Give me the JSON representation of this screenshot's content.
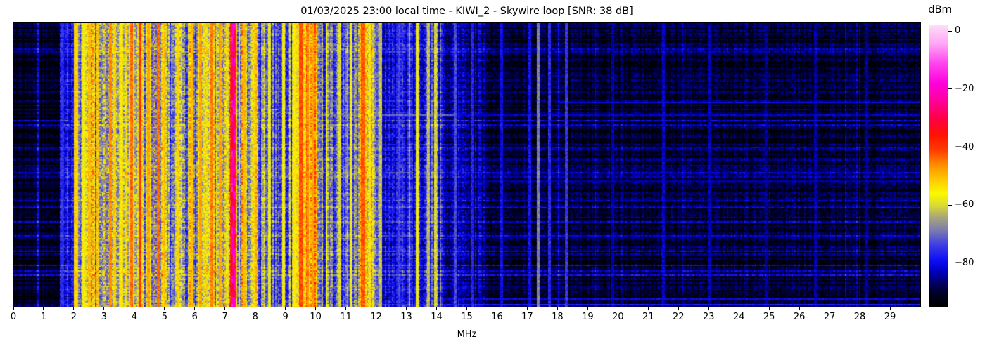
{
  "chart_data": {
    "type": "heatmap",
    "heatmap_kind": "radio-spectrum-waterfall",
    "title": "01/03/2025 23:00 local time - KIWI_2 - Skywire loop [SNR: 38 dB]",
    "xlabel": "MHz",
    "x_range_mhz": [
      0,
      30
    ],
    "x_ticks": [
      0,
      1,
      2,
      3,
      4,
      5,
      6,
      7,
      8,
      9,
      10,
      11,
      12,
      13,
      14,
      15,
      16,
      17,
      18,
      19,
      20,
      21,
      22,
      23,
      24,
      25,
      26,
      27,
      28,
      29
    ],
    "y_ticks": [],
    "value_range_dbm": [
      -95,
      2
    ],
    "colorbar": {
      "label": "dBm",
      "ticks": [
        {
          "v": 0,
          "label": "0"
        },
        {
          "v": -20,
          "label": "−20"
        },
        {
          "v": -40,
          "label": "−40"
        },
        {
          "v": -60,
          "label": "−60"
        },
        {
          "v": -80,
          "label": "−80"
        }
      ]
    },
    "colormap_stops": [
      [
        -95,
        "#000000"
      ],
      [
        -91,
        "#00001e"
      ],
      [
        -87,
        "#000064"
      ],
      [
        -83,
        "#0000be"
      ],
      [
        -79,
        "#0f0ff5"
      ],
      [
        -74,
        "#3c3ce6"
      ],
      [
        -69,
        "#7878b4"
      ],
      [
        -64,
        "#aaaa78"
      ],
      [
        -60,
        "#dcdc32"
      ],
      [
        -56,
        "#fafa00"
      ],
      [
        -51,
        "#ffc800"
      ],
      [
        -46,
        "#ff8c00"
      ],
      [
        -41,
        "#ff3c00"
      ],
      [
        -36,
        "#ff1400"
      ],
      [
        -30,
        "#ff0046"
      ],
      [
        -24,
        "#ff009b"
      ],
      [
        -18,
        "#ff00dc"
      ],
      [
        -11,
        "#ff46f0"
      ],
      [
        -4,
        "#ffaaf5"
      ],
      [
        2,
        "#ffdcfa"
      ]
    ],
    "bands_key": [
      "from_mhz",
      "to_mhz",
      "base_dbm",
      "spread_db",
      "p_active_col",
      "active_up_db",
      "row_texture_factor",
      "pixel_noise_db"
    ],
    "bands": [
      [
        0.0,
        1.52,
        -91,
        2.5,
        0.04,
        8,
        1.6,
        3.0
      ],
      [
        1.52,
        2.02,
        -81,
        5.0,
        0.1,
        6,
        1.0,
        5.0
      ],
      [
        2.02,
        2.55,
        -70,
        9.0,
        0.25,
        9,
        0.8,
        6.0
      ],
      [
        2.55,
        5.15,
        -63,
        10.0,
        0.35,
        9,
        0.7,
        7.0
      ],
      [
        5.15,
        6.1,
        -67,
        10.0,
        0.25,
        9,
        0.7,
        7.0
      ],
      [
        6.1,
        7.18,
        -60,
        10.0,
        0.35,
        9,
        0.7,
        7.0
      ],
      [
        7.18,
        7.38,
        -44,
        6.0,
        0.5,
        6,
        0.5,
        6.0
      ],
      [
        7.38,
        8.1,
        -62,
        10.0,
        0.3,
        8,
        0.7,
        7.0
      ],
      [
        8.1,
        9.35,
        -71,
        9.0,
        0.18,
        10,
        0.8,
        6.0
      ],
      [
        9.35,
        10.05,
        -58,
        9.0,
        0.35,
        8,
        0.7,
        7.0
      ],
      [
        10.05,
        11.45,
        -71,
        9.0,
        0.15,
        10,
        0.8,
        6.0
      ],
      [
        11.45,
        11.68,
        -50,
        7.0,
        0.4,
        6,
        0.6,
        6.0
      ],
      [
        11.68,
        12.05,
        -64,
        9.0,
        0.3,
        8,
        0.7,
        6.0
      ],
      [
        12.05,
        13.25,
        -79,
        6.0,
        0.1,
        9,
        1.0,
        5.0
      ],
      [
        13.25,
        14.15,
        -75,
        8.0,
        0.15,
        10,
        1.0,
        6.0
      ],
      [
        14.15,
        15.6,
        -85,
        4.0,
        0.06,
        8,
        1.2,
        4.5
      ],
      [
        15.6,
        30.0,
        -90,
        2.5,
        0.03,
        6,
        1.5,
        3.5
      ]
    ],
    "carriers_key": [
      "freq_mhz",
      "halfwidth_mhz",
      "level_dbm"
    ],
    "carriers": [
      [
        1.62,
        0.025,
        -76
      ],
      [
        2.07,
        0.025,
        -52
      ],
      [
        2.32,
        0.02,
        -56
      ],
      [
        2.5,
        0.02,
        -50
      ],
      [
        2.8,
        0.02,
        -52
      ],
      [
        3.2,
        0.025,
        -46
      ],
      [
        3.35,
        0.02,
        -52
      ],
      [
        3.6,
        0.02,
        -55
      ],
      [
        3.9,
        0.025,
        -44
      ],
      [
        4.19,
        0.03,
        -40
      ],
      [
        4.45,
        0.02,
        -48
      ],
      [
        4.78,
        0.025,
        -44
      ],
      [
        5.0,
        0.02,
        -50
      ],
      [
        5.45,
        0.02,
        -52
      ],
      [
        5.9,
        0.02,
        -50
      ],
      [
        6.2,
        0.02,
        -48
      ],
      [
        6.55,
        0.025,
        -45
      ],
      [
        6.85,
        0.02,
        -48
      ],
      [
        7.27,
        0.06,
        -30
      ],
      [
        7.62,
        0.02,
        -50
      ],
      [
        8.0,
        0.02,
        -52
      ],
      [
        8.45,
        0.02,
        -58
      ],
      [
        8.95,
        0.02,
        -56
      ],
      [
        9.3,
        0.02,
        -55
      ],
      [
        9.52,
        0.035,
        -42
      ],
      [
        9.7,
        0.025,
        -46
      ],
      [
        9.92,
        0.025,
        -48
      ],
      [
        10.35,
        0.02,
        -58
      ],
      [
        10.8,
        0.02,
        -60
      ],
      [
        11.18,
        0.02,
        -58
      ],
      [
        11.56,
        0.04,
        -43
      ],
      [
        11.82,
        0.025,
        -54
      ],
      [
        12.12,
        0.02,
        -62
      ],
      [
        12.75,
        0.02,
        -74
      ],
      [
        13.37,
        0.025,
        -57
      ],
      [
        13.72,
        0.02,
        -62
      ],
      [
        13.97,
        0.025,
        -60
      ],
      [
        14.6,
        0.02,
        -73
      ],
      [
        15.15,
        0.02,
        -77
      ],
      [
        16.12,
        0.02,
        -80
      ],
      [
        17.05,
        0.02,
        -79
      ],
      [
        17.35,
        0.025,
        -68
      ],
      [
        17.72,
        0.02,
        -76
      ],
      [
        18.28,
        0.025,
        -75
      ],
      [
        19.8,
        0.02,
        -84
      ],
      [
        21.5,
        0.02,
        -82
      ],
      [
        23.02,
        0.02,
        -83
      ],
      [
        24.9,
        0.02,
        -85
      ],
      [
        26.5,
        0.02,
        -84
      ],
      [
        28.2,
        0.02,
        -85
      ]
    ],
    "time_lines_key": [
      "time_fraction",
      "from_mhz",
      "to_mhz",
      "level_dbm"
    ],
    "time_lines": [
      [
        0.277,
        18.0,
        30.0,
        -80
      ],
      [
        0.325,
        9.7,
        14.6,
        -70
      ],
      [
        0.325,
        14.6,
        30.0,
        -82
      ],
      [
        0.555,
        10.0,
        30.0,
        -84
      ],
      [
        0.975,
        12.5,
        30.0,
        -80
      ],
      [
        0.995,
        1.55,
        30.0,
        -77
      ]
    ],
    "render_seed": 20250103
  }
}
